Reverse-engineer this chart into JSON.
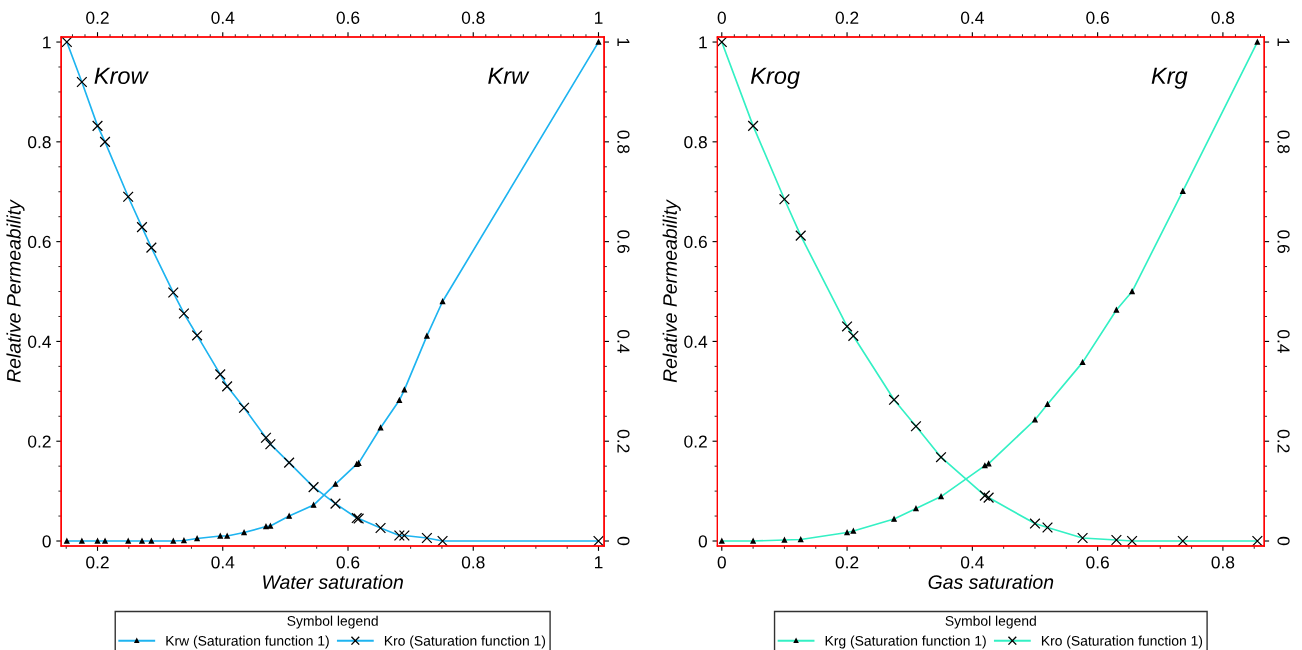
{
  "chart_data": [
    {
      "type": "line",
      "xlabel": "Water saturation",
      "ylabel": "Relative Permeability",
      "legend_title": "Symbol legend",
      "legend": "bottom",
      "grid": false,
      "x": [
        0.151,
        0.175,
        0.2,
        0.212,
        0.249,
        0.271,
        0.286,
        0.321,
        0.338,
        0.359,
        0.396,
        0.407,
        0.434,
        0.469,
        0.476,
        0.506,
        0.545,
        0.58,
        0.614,
        0.617,
        0.652,
        0.682,
        0.69,
        0.726,
        0.751,
        1.0
      ],
      "series": [
        {
          "name": "Krw (Saturation function 1)",
          "color": "#1eb4f0",
          "marker": "triangle",
          "values": [
            0,
            0,
            0,
            0,
            0,
            0,
            0,
            0,
            0.001,
            0.005,
            0.01,
            0.01,
            0.017,
            0.029,
            0.03,
            0.05,
            0.072,
            0.114,
            0.154,
            0.156,
            0.227,
            0.282,
            0.303,
            0.411,
            0.48,
            1.0
          ]
        },
        {
          "name": "Kro (Saturation function 1)",
          "color": "#1eb4f0",
          "marker": "cross",
          "values": [
            1.0,
            0.92,
            0.832,
            0.8,
            0.69,
            0.629,
            0.588,
            0.498,
            0.456,
            0.412,
            0.334,
            0.31,
            0.267,
            0.207,
            0.194,
            0.157,
            0.108,
            0.075,
            0.046,
            0.045,
            0.026,
            0.011,
            0.011,
            0.006,
            0,
            0
          ]
        }
      ],
      "annotations": [
        "Krow",
        "Krw"
      ],
      "xlim": [
        0.142,
        1.009
      ],
      "xticks": [
        0.2,
        0.4,
        0.6,
        0.8,
        1
      ],
      "x2lim": [
        0.142,
        1.009
      ],
      "x2ticks": [
        0.2,
        0.4,
        0.6,
        0.8,
        1
      ],
      "ylim": [
        -0.01,
        1.01
      ],
      "yticks": [
        0,
        0.2,
        0.4,
        0.6,
        0.8,
        1
      ],
      "y2lim": [
        -0.01,
        1.01
      ],
      "y2ticks": [
        0,
        0.2,
        0.4,
        0.6,
        0.8,
        1
      ]
    },
    {
      "type": "line",
      "xlabel": "Gas saturation",
      "ylabel": "Relative Permeability",
      "legend_title": "Symbol legend",
      "legend": "bottom",
      "grid": false,
      "x": [
        0,
        0.05,
        0.1,
        0.126,
        0.2,
        0.21,
        0.275,
        0.31,
        0.35,
        0.42,
        0.426,
        0.5,
        0.52,
        0.576,
        0.63,
        0.655,
        0.736,
        0.855
      ],
      "series": [
        {
          "name": "Krg (Saturation function 1)",
          "color": "#33f0c4",
          "marker": "triangle",
          "values": [
            0,
            0,
            0.002,
            0.003,
            0.017,
            0.02,
            0.044,
            0.065,
            0.089,
            0.151,
            0.155,
            0.243,
            0.274,
            0.358,
            0.463,
            0.5,
            0.701,
            1.0
          ]
        },
        {
          "name": "Kro (Saturation function 1)",
          "color": "#33f0c4",
          "marker": "cross",
          "values": [
            1.0,
            0.832,
            0.685,
            0.612,
            0.43,
            0.411,
            0.283,
            0.23,
            0.168,
            0.091,
            0.087,
            0.035,
            0.027,
            0.006,
            0.002,
            0,
            0,
            0
          ]
        }
      ],
      "annotations": [
        "Krog",
        "Krg"
      ],
      "xlim": [
        -0.007,
        0.866
      ],
      "xticks": [
        0,
        0.2,
        0.4,
        0.6,
        0.8
      ],
      "x2lim": [
        -0.007,
        0.866
      ],
      "x2ticks": [
        0,
        0.2,
        0.4,
        0.6,
        0.8
      ],
      "ylim": [
        -0.01,
        1.01
      ],
      "yticks": [
        0,
        0.2,
        0.4,
        0.6,
        0.8,
        1
      ],
      "y2lim": [
        -0.01,
        1.01
      ],
      "y2ticks": [
        0,
        0.2,
        0.4,
        0.6,
        0.8,
        1
      ]
    }
  ]
}
